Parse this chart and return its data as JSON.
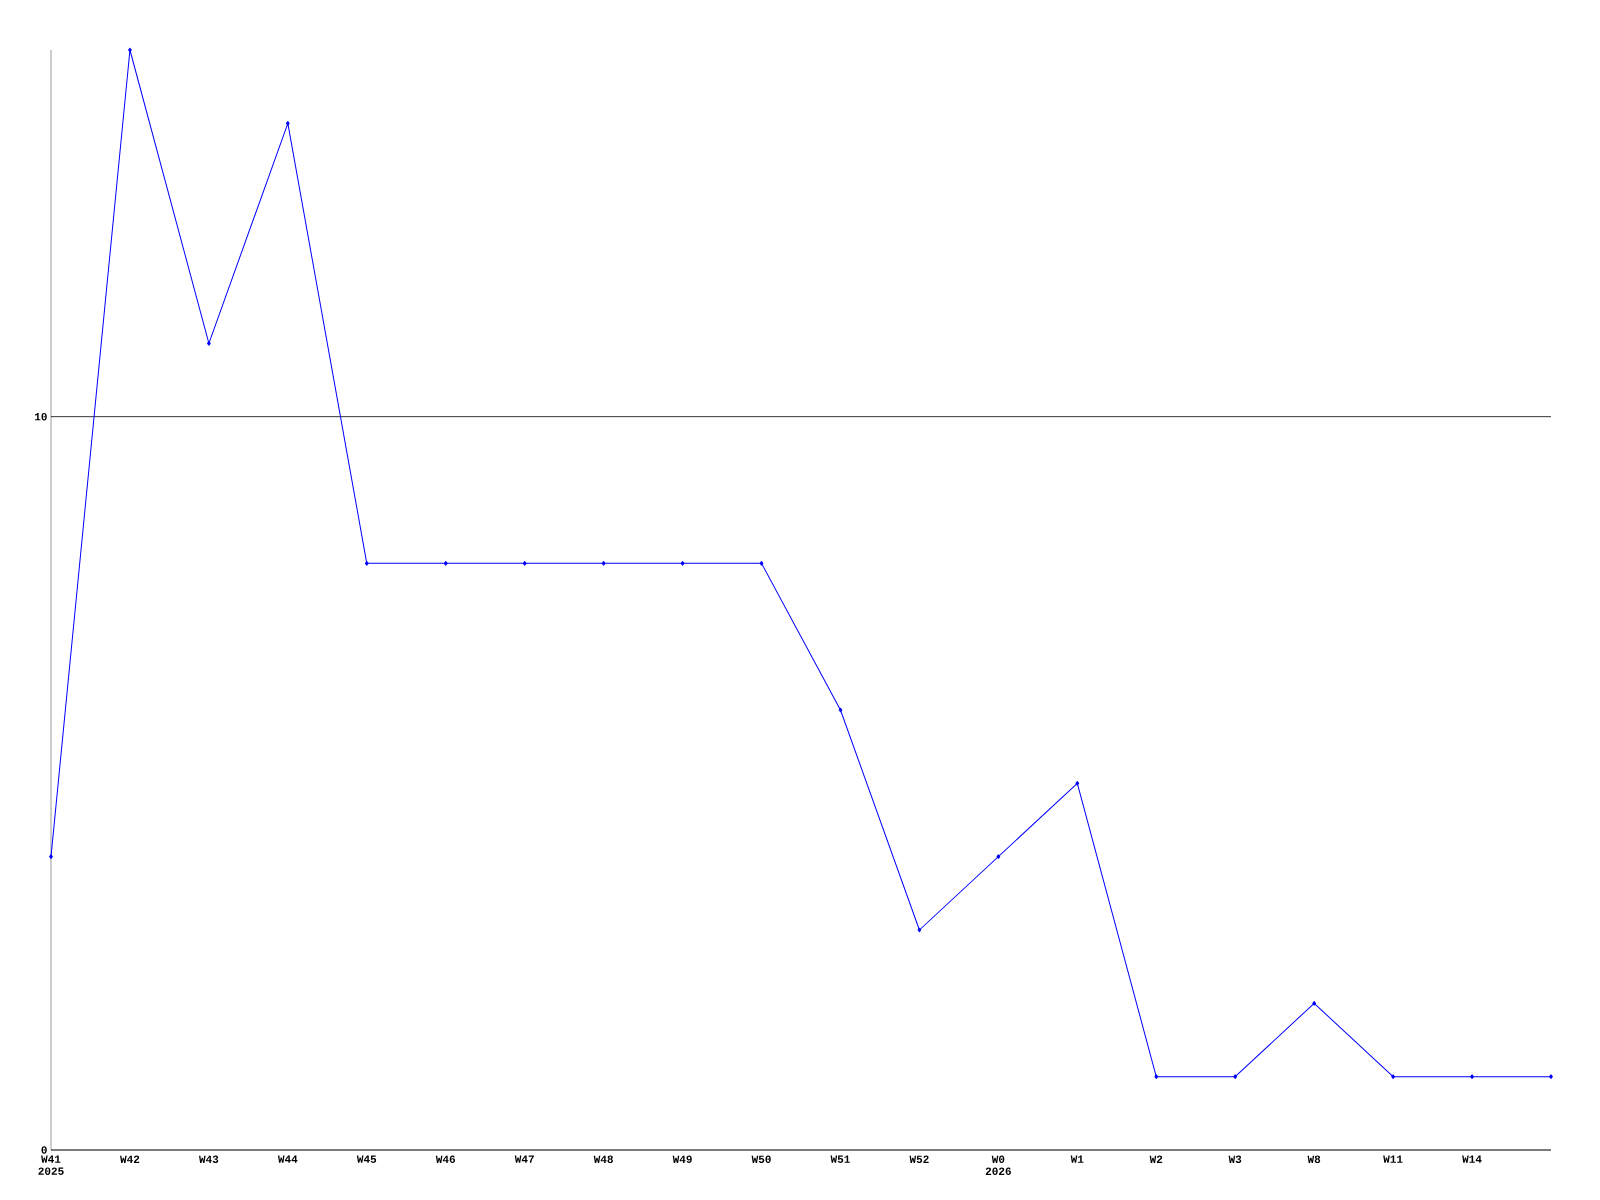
{
  "chart_data": {
    "type": "line",
    "categories": [
      "W41 2025",
      "W42",
      "W43",
      "W44",
      "W45",
      "W46",
      "W47",
      "W48",
      "W49",
      "W50",
      "W51",
      "W52",
      "W0 2026",
      "W1",
      "W2",
      "W3",
      "W8",
      "W11",
      "W14",
      null
    ],
    "values": [
      4,
      15,
      11,
      14,
      8,
      8,
      8,
      8,
      8,
      8,
      6,
      3,
      4,
      5,
      1,
      1,
      2,
      1,
      1,
      1
    ],
    "color": "#0000ff",
    "marker": "diamond",
    "ylim": [
      0,
      15
    ],
    "yticks": [
      0,
      10
    ],
    "grid": "y"
  }
}
